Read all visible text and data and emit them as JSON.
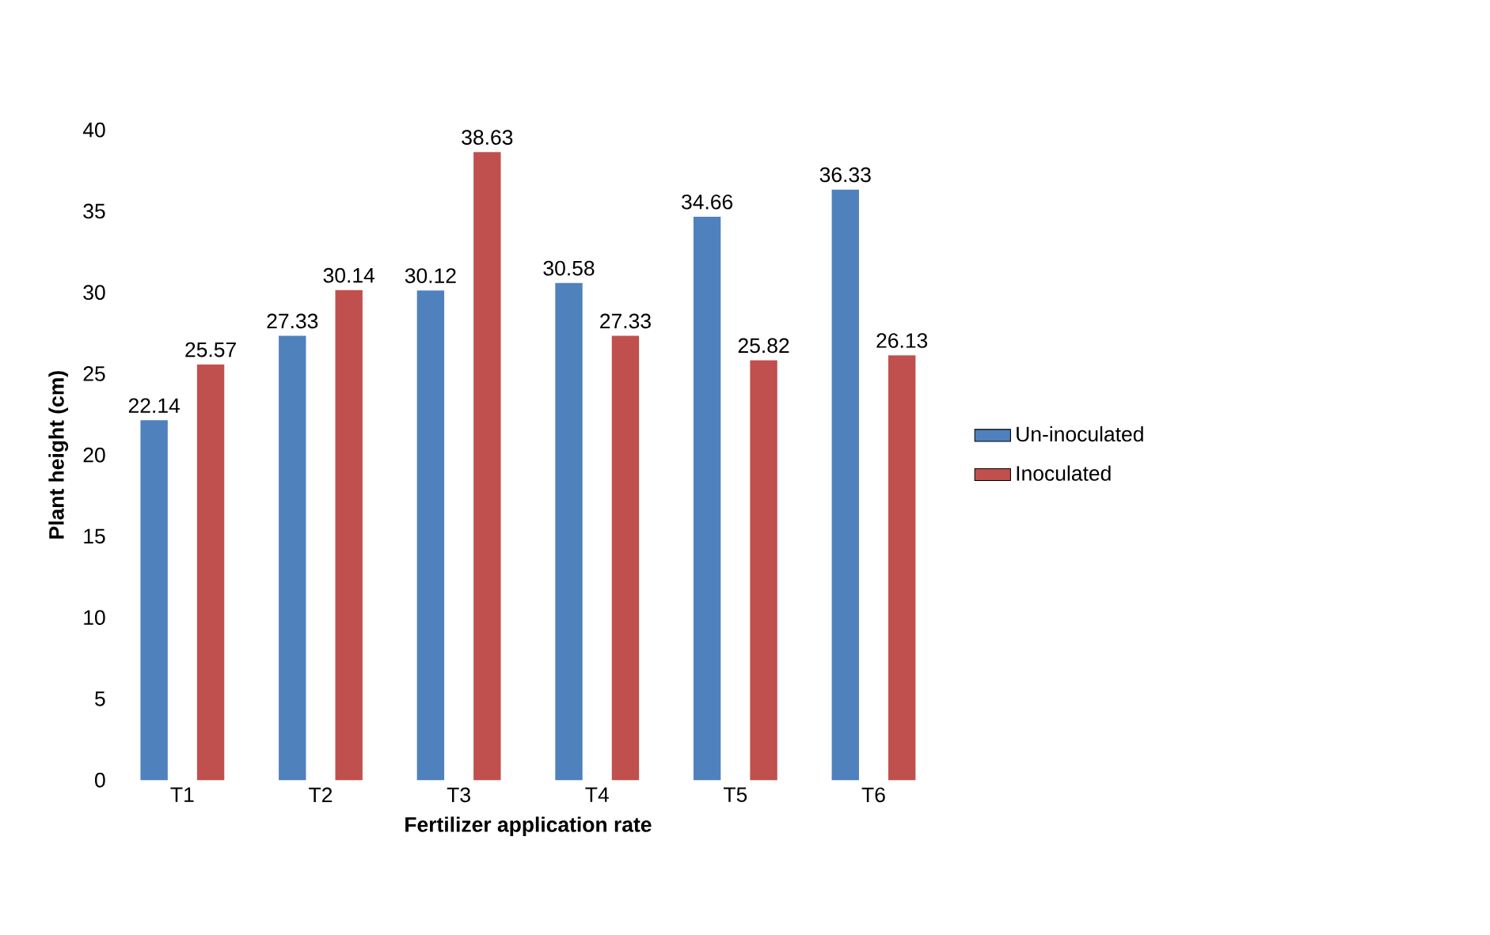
{
  "chart_data": {
    "type": "bar",
    "xlabel": "Fertilizer application rate",
    "ylabel": "Plant height (cm)",
    "categories": [
      "T1",
      "T2",
      "T3",
      "T4",
      "T5",
      "T6"
    ],
    "series": [
      {
        "name": "Un-inoculated",
        "color": "#4f81bd",
        "values": [
          22.14,
          27.33,
          30.12,
          30.58,
          34.66,
          36.33
        ]
      },
      {
        "name": "Inoculated",
        "color": "#c0504d",
        "values": [
          25.57,
          30.14,
          38.63,
          27.33,
          25.82,
          26.13
        ]
      }
    ],
    "ylim": [
      0,
      40
    ],
    "yticks": [
      0,
      5,
      10,
      15,
      20,
      25,
      30,
      35,
      40
    ],
    "data_labels": true,
    "legend": "right"
  }
}
